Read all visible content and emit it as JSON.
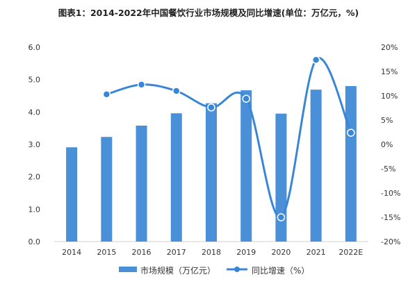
{
  "chart_data": {
    "type": "bar",
    "title": "图表1：2014-2022年中国餐饮行业市场规模及同比增速(单位：万亿元，%)",
    "categories": [
      "2014",
      "2015",
      "2016",
      "2017",
      "2018",
      "2019",
      "2020",
      "2021",
      "2022E"
    ],
    "series": [
      {
        "name": "市场规模（万亿元）",
        "type": "bar",
        "axis": "left",
        "values": [
          2.91,
          3.23,
          3.58,
          3.96,
          4.27,
          4.67,
          3.95,
          4.69,
          4.8
        ]
      },
      {
        "name": "同比增速（%）",
        "type": "line",
        "axis": "right",
        "values": [
          null,
          10.3,
          12.3,
          11.0,
          7.6,
          9.4,
          -15.0,
          17.4,
          2.4
        ]
      }
    ],
    "y_left": {
      "lim": [
        0,
        6.0
      ],
      "ticks": [
        "0.0",
        "1.0",
        "2.0",
        "3.0",
        "4.0",
        "5.0",
        "6.0"
      ]
    },
    "y_right": {
      "lim": [
        -20,
        20
      ],
      "ticks": [
        "-20%",
        "-15%",
        "-10%",
        "-5%",
        "0%",
        "5%",
        "10%",
        "15%",
        "20%"
      ]
    },
    "grid": false,
    "legend_position": "bottom-center",
    "colors": {
      "bar": "#4a90d9",
      "line": "#3a86d6"
    }
  }
}
